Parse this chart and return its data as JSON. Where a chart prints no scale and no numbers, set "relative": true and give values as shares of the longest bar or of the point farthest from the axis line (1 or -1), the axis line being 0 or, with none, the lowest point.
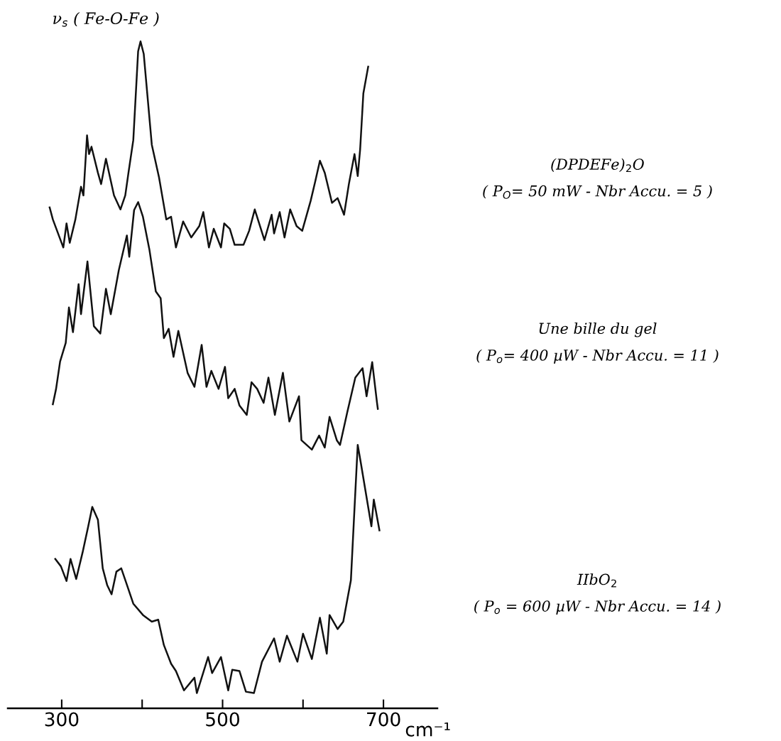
{
  "chart_data": {
    "type": "line",
    "relative": true,
    "xlabel": "cm⁻¹",
    "xlim": [
      233,
      767
    ],
    "xticks": [
      300,
      {
        "value": 400,
        "label": null
      },
      500,
      {
        "value": 600,
        "label": null
      },
      700
    ],
    "annotations": [
      {
        "text": "ν$_{s}$ ( Fe-O-Fe )",
        "x": 398,
        "y": 1.0
      },
      "( P$_{O}$= 50 mW - Nbr Accu. = 5 )",
      "( P$_{o}$= 400 µW - Nbr Accu. = 11 )",
      "( P$_{o}$ = 600 µW - Nbr Accu. = 14 )"
    ],
    "series": [
      {
        "name": "(DPDEFe)$_{2}$O",
        "color": "#111111",
        "x": [
          285,
          289,
          302,
          306,
          310,
          317,
          324,
          327,
          331.5,
          334,
          337,
          345,
          349,
          355,
          365,
          373,
          379,
          383,
          389,
          395,
          398,
          402,
          412,
          421,
          430,
          436,
          442,
          451,
          461,
          471,
          476,
          483,
          489,
          498,
          502,
          509,
          515,
          526,
          533,
          540,
          552,
          561,
          564,
          571,
          577,
          584,
          592,
          599,
          609.5,
          615,
          621,
          627,
          636,
          643,
          651,
          657,
          664,
          668,
          671,
          675,
          681
        ],
        "values": [
          0.751,
          0.733,
          0.691,
          0.727,
          0.698,
          0.733,
          0.782,
          0.769,
          0.859,
          0.831,
          0.842,
          0.803,
          0.786,
          0.824,
          0.769,
          0.748,
          0.769,
          0.803,
          0.852,
          0.985,
          1.0,
          0.981,
          0.845,
          0.796,
          0.733,
          0.737,
          0.691,
          0.73,
          0.706,
          0.723,
          0.744,
          0.691,
          0.719,
          0.691,
          0.727,
          0.719,
          0.695,
          0.695,
          0.716,
          0.748,
          0.702,
          0.74,
          0.712,
          0.744,
          0.706,
          0.748,
          0.723,
          0.716,
          0.761,
          0.789,
          0.821,
          0.803,
          0.758,
          0.765,
          0.74,
          0.786,
          0.831,
          0.798,
          0.838,
          0.922,
          0.962
        ]
      },
      {
        "name": "Une bille du gel",
        "color": "#111111",
        "x": [
          289,
          293,
          298,
          305,
          309,
          314,
          321,
          324,
          332,
          340,
          348,
          355,
          361,
          371,
          381,
          384,
          390,
          395,
          401,
          409,
          417,
          423,
          427,
          433,
          439,
          445,
          456.5,
          465,
          474,
          480,
          486,
          495,
          503,
          507,
          515,
          521,
          530,
          536,
          543,
          551,
          557,
          565,
          575,
          583,
          595,
          598,
          611,
          620,
          627,
          633,
          642,
          646,
          655,
          665,
          674,
          679,
          686,
          692,
          693
        ],
        "values": [
          0.456,
          0.479,
          0.52,
          0.548,
          0.601,
          0.564,
          0.636,
          0.591,
          0.67,
          0.573,
          0.562,
          0.629,
          0.591,
          0.657,
          0.709,
          0.677,
          0.747,
          0.759,
          0.737,
          0.688,
          0.625,
          0.615,
          0.555,
          0.569,
          0.527,
          0.566,
          0.503,
          0.482,
          0.545,
          0.482,
          0.506,
          0.479,
          0.512,
          0.465,
          0.479,
          0.454,
          0.44,
          0.489,
          0.479,
          0.458,
          0.496,
          0.44,
          0.503,
          0.43,
          0.468,
          0.402,
          0.388,
          0.409,
          0.391,
          0.437,
          0.402,
          0.395,
          0.444,
          0.496,
          0.51,
          0.468,
          0.519,
          0.458,
          0.449
        ]
      },
      {
        "name": "IIbO$_{2}$",
        "color": "#111111",
        "x": [
          292,
          299,
          306,
          311,
          318,
          326,
          333,
          338,
          345,
          351,
          356.5,
          362,
          368,
          374,
          380,
          389,
          401,
          412,
          420,
          427,
          436,
          442,
          452,
          465,
          468,
          482,
          487,
          498,
          507,
          512,
          521,
          529,
          539,
          549,
          564,
          571,
          580,
          593,
          600,
          611,
          621,
          629.5,
          633,
          643,
          650,
          659.5,
          663,
          668,
          672,
          685,
          688,
          695
        ],
        "values": [
          0.224,
          0.213,
          0.191,
          0.224,
          0.194,
          0.234,
          0.273,
          0.302,
          0.283,
          0.21,
          0.185,
          0.171,
          0.205,
          0.21,
          0.189,
          0.157,
          0.14,
          0.13,
          0.133,
          0.095,
          0.067,
          0.056,
          0.027,
          0.046,
          0.023,
          0.077,
          0.053,
          0.077,
          0.027,
          0.058,
          0.056,
          0.025,
          0.023,
          0.07,
          0.105,
          0.07,
          0.109,
          0.07,
          0.112,
          0.074,
          0.136,
          0.082,
          0.14,
          0.119,
          0.13,
          0.192,
          0.276,
          0.395,
          0.367,
          0.273,
          0.313,
          0.267
        ]
      }
    ]
  }
}
